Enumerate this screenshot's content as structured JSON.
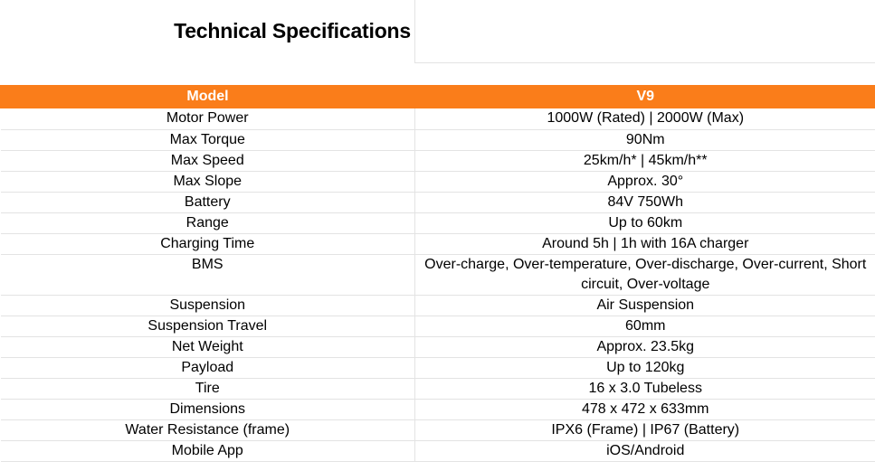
{
  "title": "Technical Specifications",
  "accent_color": "#fa7d1a",
  "table": {
    "header": {
      "label": "Model",
      "value": "V9"
    },
    "rows": [
      {
        "label": "Motor Power",
        "value": "1000W (Rated) | 2000W (Max)"
      },
      {
        "label": "Max Torque",
        "value": "90Nm"
      },
      {
        "label": "Max Speed",
        "value": "25km/h* | 45km/h**"
      },
      {
        "label": "Max Slope",
        "value": "Approx. 30°"
      },
      {
        "label": "Battery",
        "value": "84V 750Wh"
      },
      {
        "label": "Range",
        "value": "Up to 60km"
      },
      {
        "label": "Charging Time",
        "value": "Around 5h | 1h with 16A charger"
      },
      {
        "label": "BMS",
        "value": "Over-charge, Over-temperature, Over-discharge, Over-current, Short circuit, Over-voltage"
      },
      {
        "label": "Suspension",
        "value": "Air Suspension"
      },
      {
        "label": "Suspension Travel",
        "value": "60mm"
      },
      {
        "label": "Net Weight",
        "value": "Approx. 23.5kg"
      },
      {
        "label": "Payload",
        "value": "Up to 120kg"
      },
      {
        "label": "Tire",
        "value": "16 x 3.0 Tubeless"
      },
      {
        "label": "Dimensions",
        "value": "478 x 472 x 633mm"
      },
      {
        "label": "Water Resistance (frame)",
        "value": "IPX6 (Frame) | IP67 (Battery)"
      },
      {
        "label": "Mobile App",
        "value": "iOS/Android"
      }
    ]
  }
}
